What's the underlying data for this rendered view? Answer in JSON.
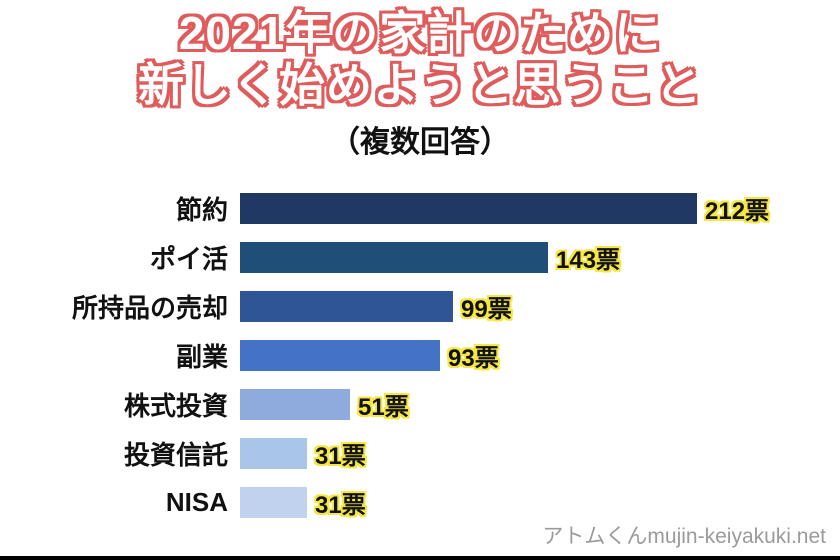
{
  "title": {
    "line1": "2021年の家計のために",
    "line2": "新しく始めようと思うこと",
    "subtitle": "（複数回答）"
  },
  "chart_data": {
    "type": "bar",
    "orientation": "horizontal",
    "title": "2021年の家計のために新しく始めようと思うこと（複数回答）",
    "categories": [
      "節約",
      "ポイ活",
      "所持品の売却",
      "副業",
      "株式投資",
      "投資信託",
      "NISA"
    ],
    "values": [
      212,
      143,
      99,
      93,
      51,
      31,
      31
    ],
    "value_labels": [
      "212票",
      "143票",
      "99票",
      "93票",
      "51票",
      "31票",
      "31票"
    ],
    "bar_colors": [
      "#1f3864",
      "#1f4e79",
      "#2f5597",
      "#4472c4",
      "#8faadc",
      "#a9c6e8",
      "#c1d2ef"
    ],
    "xlim": [
      0,
      220
    ],
    "unit": "票",
    "grid": false,
    "legend": "none"
  },
  "watermark": "アトムくんmujin-keiyakuki.net",
  "colors": {
    "title_fill": "#ffffff",
    "title_outline": "#e05c5c",
    "value_outline": "#f5e642",
    "text": "#111111",
    "background": "#ffffff",
    "bottom_border": "#000000"
  }
}
